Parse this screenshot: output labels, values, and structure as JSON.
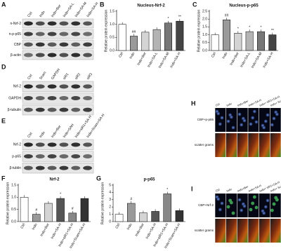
{
  "blots": [
    {
      "panel": "A",
      "columns": [
        "Ctrl",
        "Indo",
        "Indo+Ber",
        "Indo+SA-L",
        "Indo+SA-M",
        "Indo+SA-H"
      ],
      "rows": [
        "n-Nrf-2",
        "n-p-p65",
        "CBP",
        "β-actin"
      ]
    },
    {
      "panel": "D",
      "columns": [
        "Ctrl",
        "Scam",
        "GAPDH",
        "siR1",
        "siR2",
        "siR3"
      ],
      "rows": [
        "Nrf-2",
        "GAPDH",
        "β-tubulin"
      ]
    },
    {
      "panel": "E",
      "columns": [
        "Ctrl",
        "Indo",
        "Indo+Ber",
        "Indo+SAH",
        "Indo+siR1+SA-H",
        "Indo+Scam+SA-H"
      ],
      "rows": [
        "Nrf-2",
        "p-p65",
        "β-tublin"
      ]
    }
  ],
  "chart_data": [
    {
      "type": "bar",
      "panel": "B",
      "title": "Nucleus-Nrf-2",
      "y_label": "Relative protein expression",
      "categories": [
        "Ctrl",
        "Indo",
        "Indo+Ber",
        "Indo+SA-L",
        "Indo+SA-M",
        "Indo+SA-H"
      ],
      "values": [
        1.0,
        0.55,
        0.7,
        0.8,
        1.05,
        1.12
      ],
      "annotations": [
        null,
        "##",
        null,
        null,
        "*",
        "**"
      ],
      "colors": [
        "#ffffff",
        "#9a9a9a",
        "#d4d4d4",
        "#b4b4b4",
        "#777777",
        "#444444"
      ],
      "ylim": [
        0,
        1.5
      ],
      "yticks": [
        {
          "value": 0,
          "label": "0.0"
        },
        {
          "value": 0.5,
          "label": "0.5"
        },
        {
          "value": 1,
          "label": "1.0"
        },
        {
          "value": 1.5,
          "label": "1.5"
        }
      ]
    },
    {
      "type": "bar",
      "panel": "C",
      "title": "Nucleus-p-p65",
      "y_label": "Relative protein expression",
      "categories": [
        "Ctrl",
        "Indo",
        "Indo+Ber",
        "Indo+SA-L",
        "Indo+SA-M",
        "Indo+SA-H"
      ],
      "values": [
        1.0,
        1.95,
        1.1,
        1.2,
        1.2,
        1.0
      ],
      "annotations": [
        null,
        "##",
        "*",
        "*",
        "*",
        "**"
      ],
      "colors": [
        "#ffffff",
        "#9a9a9a",
        "#d4d4d4",
        "#b4b4b4",
        "#777777",
        "#444444"
      ],
      "ylim": [
        0,
        2.5
      ],
      "yticks": [
        {
          "value": 0,
          "label": "0.0"
        },
        {
          "value": 0.5,
          "label": "0.5"
        },
        {
          "value": 1,
          "label": "1.0"
        },
        {
          "value": 1.5,
          "label": "1.5"
        },
        {
          "value": 2,
          "label": "2.0"
        },
        {
          "value": 2.5,
          "label": "2.5"
        }
      ]
    },
    {
      "type": "bar",
      "panel": "F",
      "title": "Nrf-2",
      "y_label": "Relative protein expression",
      "categories": [
        "Ctrl",
        "Indo",
        "Indo+Ber",
        "Indo+SA-H",
        "Indo+siR1+SA-H",
        "Indo+Scam+SA-H"
      ],
      "values": [
        1.0,
        0.3,
        0.75,
        0.95,
        0.35,
        0.95
      ],
      "annotations": [
        null,
        "#",
        null,
        "*",
        "#",
        null
      ],
      "colors": [
        "#ffffff",
        "#9a9a9a",
        "#d4d4d4",
        "#555555",
        "#888888",
        "#333333"
      ],
      "ylim": [
        0,
        1.5
      ],
      "yticks": [
        {
          "value": 0,
          "label": "0.0"
        },
        {
          "value": 0.5,
          "label": "0.5"
        },
        {
          "value": 1,
          "label": "1.0"
        },
        {
          "value": 1.5,
          "label": "1.5"
        }
      ]
    },
    {
      "type": "bar",
      "panel": "G",
      "title": "p-p65",
      "y_label": "Relative protein expression",
      "categories": [
        "Ctrl",
        "Indo",
        "Indo+Ber",
        "Indo+SA-H",
        "Indo+siR1+SA-H",
        "Indo+Scam+SA-H"
      ],
      "values": [
        1.0,
        2.5,
        1.2,
        1.4,
        3.8,
        1.5
      ],
      "annotations": [
        null,
        "#",
        null,
        null,
        "*",
        null
      ],
      "colors": [
        "#ffffff",
        "#9a9a9a",
        "#d4d4d4",
        "#555555",
        "#888888",
        "#333333"
      ],
      "ylim": [
        0,
        5
      ],
      "yticks": [
        0,
        1,
        2,
        3,
        4,
        5
      ]
    }
  ],
  "images": [
    {
      "panel": "H",
      "columns": [
        "Ctrl",
        "Indo",
        "Indo+Ber",
        "Indo+SA-H",
        "Indo+ siR1+SA-H",
        "Indo+ Scam+SA-H"
      ],
      "rows": [
        "CBP+p-p65",
        "scatter grams"
      ]
    },
    {
      "panel": "I",
      "columns": [
        "Ctrl",
        "Indo",
        "Indo+Ber",
        "Indo+SA-H",
        "Indo+ siR1+SA-H",
        "Indo+ Scam+SA-H"
      ],
      "rows": [
        "CBP+Nrf-2",
        "scatter grams"
      ]
    }
  ]
}
